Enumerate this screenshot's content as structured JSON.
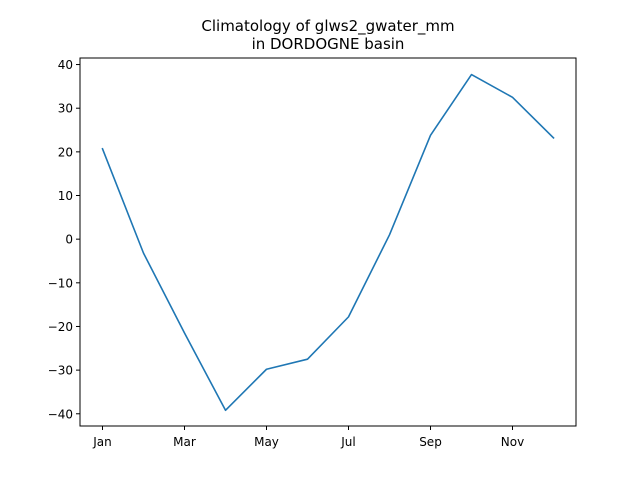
{
  "chart_data": {
    "type": "line",
    "title": [
      "Climatology of glws2_gwater_mm",
      "in DORDOGNE basin"
    ],
    "xlabel": "",
    "ylabel": "",
    "x": [
      "Jan",
      "Feb",
      "Mar",
      "Apr",
      "May",
      "Jun",
      "Jul",
      "Aug",
      "Sep",
      "Oct",
      "Nov",
      "Dec"
    ],
    "x_tick_labels": [
      "Jan",
      "Mar",
      "May",
      "Jul",
      "Sep",
      "Nov"
    ],
    "y_ticks": [
      40,
      30,
      20,
      10,
      0,
      -10,
      -20,
      -30,
      -40
    ],
    "y_tick_labels": [
      "40",
      "30",
      "20",
      "10",
      "0",
      "−10",
      "−20",
      "−30",
      "−40"
    ],
    "ylim": [
      -42.8,
      41.5
    ],
    "series": [
      {
        "values": [
          20.7,
          -3.2,
          -21.5,
          -39.2,
          -29.8,
          -27.5,
          -17.8,
          1.0,
          23.8,
          37.7,
          32.5,
          23.2
        ],
        "color": "#1f77b4"
      }
    ],
    "grid": false,
    "legend": "none"
  }
}
